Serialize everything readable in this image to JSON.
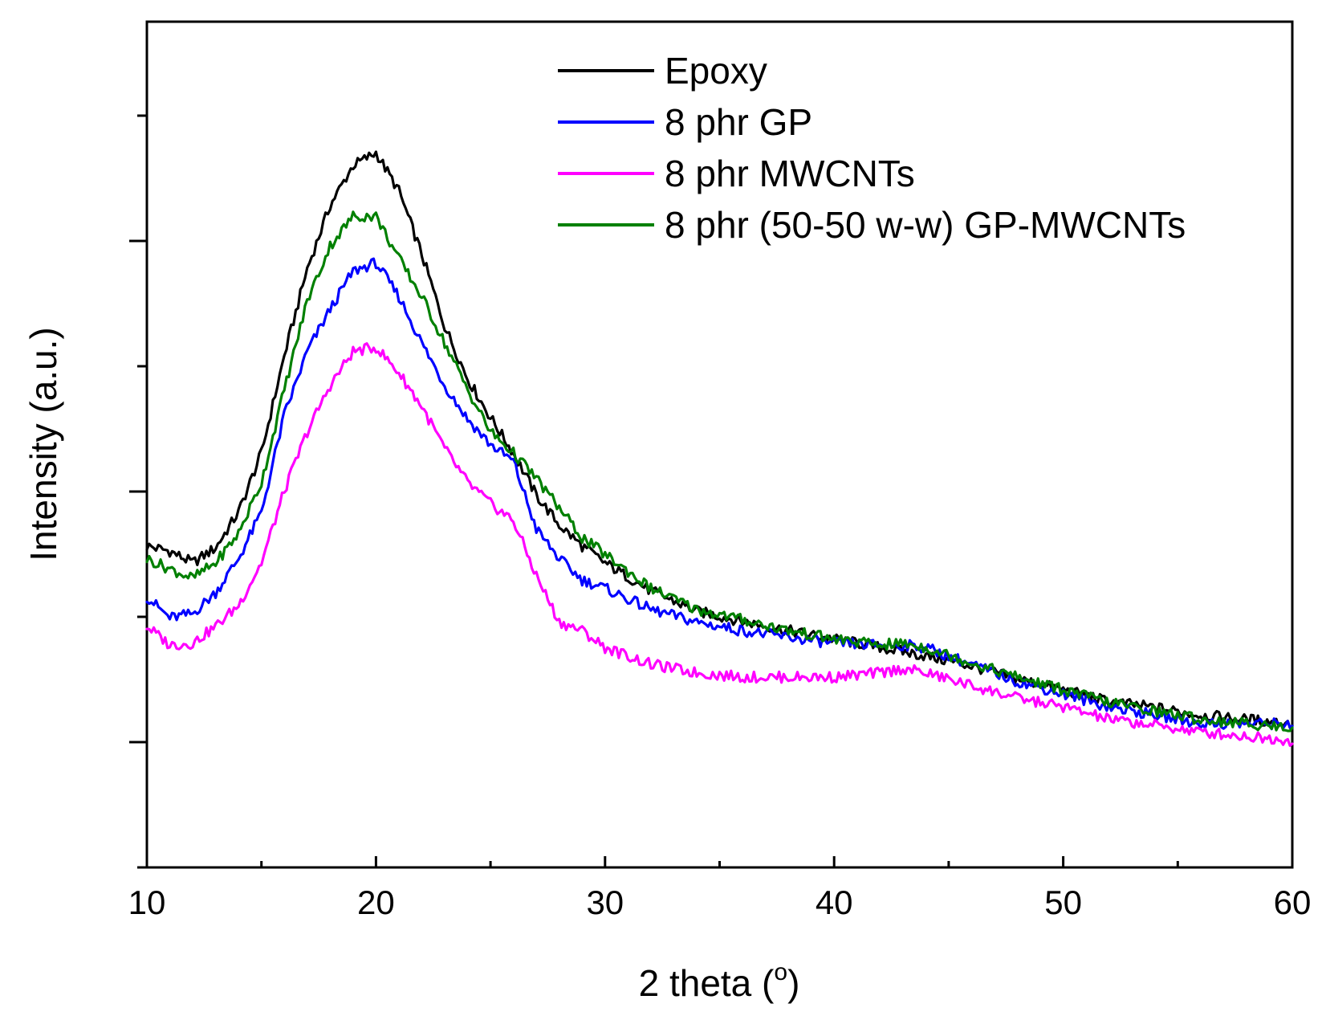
{
  "chart_data": {
    "type": "line",
    "title": "",
    "xlabel": "2 theta (",
    "xlabel_degree": "o",
    "xlabel_close": ")",
    "ylabel": "Intensity (a.u.)",
    "xlim": [
      10,
      60
    ],
    "ylim": [
      0,
      100
    ],
    "x_ticks": [
      10,
      20,
      30,
      40,
      50,
      60
    ],
    "x_tick_labels": [
      "10",
      "20",
      "30",
      "40",
      "50",
      "60"
    ],
    "y_tick_labels_shown": false,
    "grid": false,
    "legend_position": "top-right",
    "x": [
      10,
      11,
      12,
      13,
      14,
      15,
      16,
      17,
      18,
      19,
      20,
      21,
      22,
      23,
      24,
      25,
      26,
      27,
      28,
      29,
      30,
      32,
      34,
      36,
      38,
      40,
      42,
      43,
      44,
      46,
      48,
      50,
      52,
      54,
      56,
      58,
      60
    ],
    "series": [
      {
        "name": "Epoxy",
        "color": "#000000",
        "values": [
          38.0,
          37.4,
          36.0,
          37.8,
          42.0,
          49.0,
          60.5,
          70.8,
          78.3,
          83.0,
          84.5,
          80.0,
          72.5,
          64.0,
          57.8,
          53.2,
          49.0,
          44.0,
          40.5,
          38.0,
          36.0,
          32.7,
          30.3,
          29.1,
          28.0,
          27.0,
          26.0,
          25.5,
          25.0,
          23.8,
          22.3,
          21.0,
          19.6,
          18.9,
          18.0,
          17.5,
          17.0
        ]
      },
      {
        "name": "8 phr GP",
        "color": "#0000ff",
        "values": [
          32.0,
          29.5,
          30.0,
          32.5,
          36.5,
          42.0,
          53.5,
          61.0,
          66.0,
          70.5,
          71.5,
          67.5,
          62.0,
          57.0,
          53.0,
          50.0,
          48.0,
          40.0,
          36.5,
          34.0,
          33.0,
          30.5,
          29.0,
          28.0,
          27.2,
          26.5,
          26.3,
          26.3,
          26.0,
          24.0,
          22.0,
          20.5,
          19.0,
          18.0,
          17.0,
          17.0,
          17.0
        ]
      },
      {
        "name": "8 phr MWCNTs",
        "color": "#ff00ff",
        "values": [
          28.5,
          26.3,
          26.5,
          28.5,
          31.0,
          36.0,
          44.5,
          51.5,
          57.0,
          61.0,
          61.5,
          58.5,
          54.5,
          49.5,
          45.5,
          43.0,
          41.0,
          34.5,
          29.0,
          28.0,
          26.0,
          24.0,
          23.0,
          22.5,
          22.5,
          22.5,
          23.0,
          23.5,
          23.0,
          21.5,
          20.0,
          19.0,
          17.5,
          16.8,
          16.0,
          15.5,
          15.0
        ]
      },
      {
        "name": "8 phr (50-50 w-w) GP-MWCNTs",
        "color": "#008000",
        "values": [
          36.5,
          35.3,
          34.2,
          36.0,
          39.5,
          45.5,
          56.5,
          67.0,
          73.5,
          77.0,
          77.0,
          72.0,
          67.5,
          62.0,
          56.5,
          51.5,
          49.0,
          46.0,
          42.5,
          39.0,
          37.0,
          33.0,
          30.5,
          29.3,
          28.0,
          27.0,
          26.3,
          26.5,
          26.0,
          24.2,
          22.5,
          21.0,
          19.5,
          18.5,
          17.5,
          17.0,
          16.5
        ]
      }
    ]
  }
}
